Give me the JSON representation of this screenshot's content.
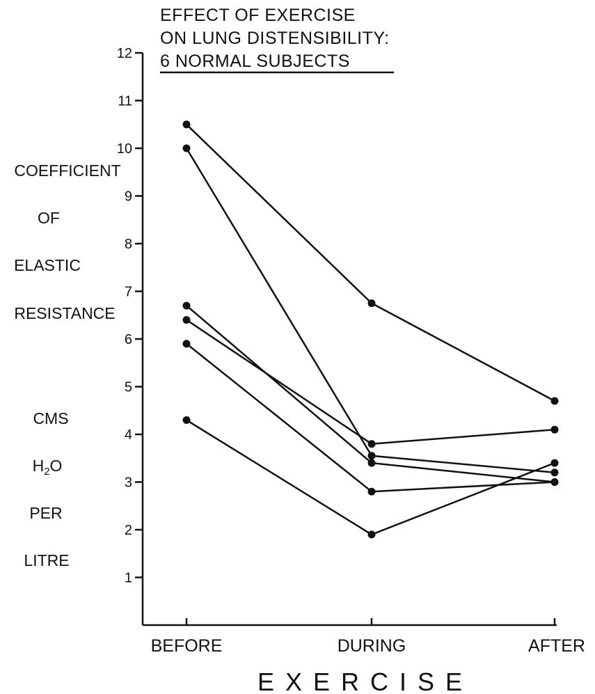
{
  "chart_data": {
    "type": "line",
    "title": [
      "EFFECT OF EXERCISE",
      "ON LUNG DISTENSIBILITY:",
      "6 NORMAL SUBJECTS"
    ],
    "ylabel": {
      "words": [
        "COEFFICIENT",
        "OF",
        "ELASTIC",
        "RESISTANCE"
      ],
      "unit_parts": [
        "CMS",
        "H",
        "2",
        "O",
        "PER",
        "LITRE"
      ]
    },
    "xlabel": "EXERCISE",
    "categories": [
      "BEFORE",
      "DURING",
      "AFTER"
    ],
    "y_ticks": [
      "1",
      "2",
      "3",
      "4",
      "5",
      "6",
      "7",
      "8",
      "9",
      "10",
      "11",
      "12"
    ],
    "ylim": [
      0,
      12
    ],
    "grid": false,
    "line_color": "#111111",
    "series": [
      {
        "values": [
          10.5,
          6.75,
          4.7
        ]
      },
      {
        "values": [
          10.0,
          3.55,
          3.2
        ]
      },
      {
        "values": [
          6.7,
          3.4,
          3.0
        ]
      },
      {
        "values": [
          6.4,
          3.8,
          4.1
        ]
      },
      {
        "values": [
          5.9,
          2.8,
          3.0
        ]
      },
      {
        "values": [
          4.3,
          1.9,
          3.4
        ]
      }
    ]
  }
}
